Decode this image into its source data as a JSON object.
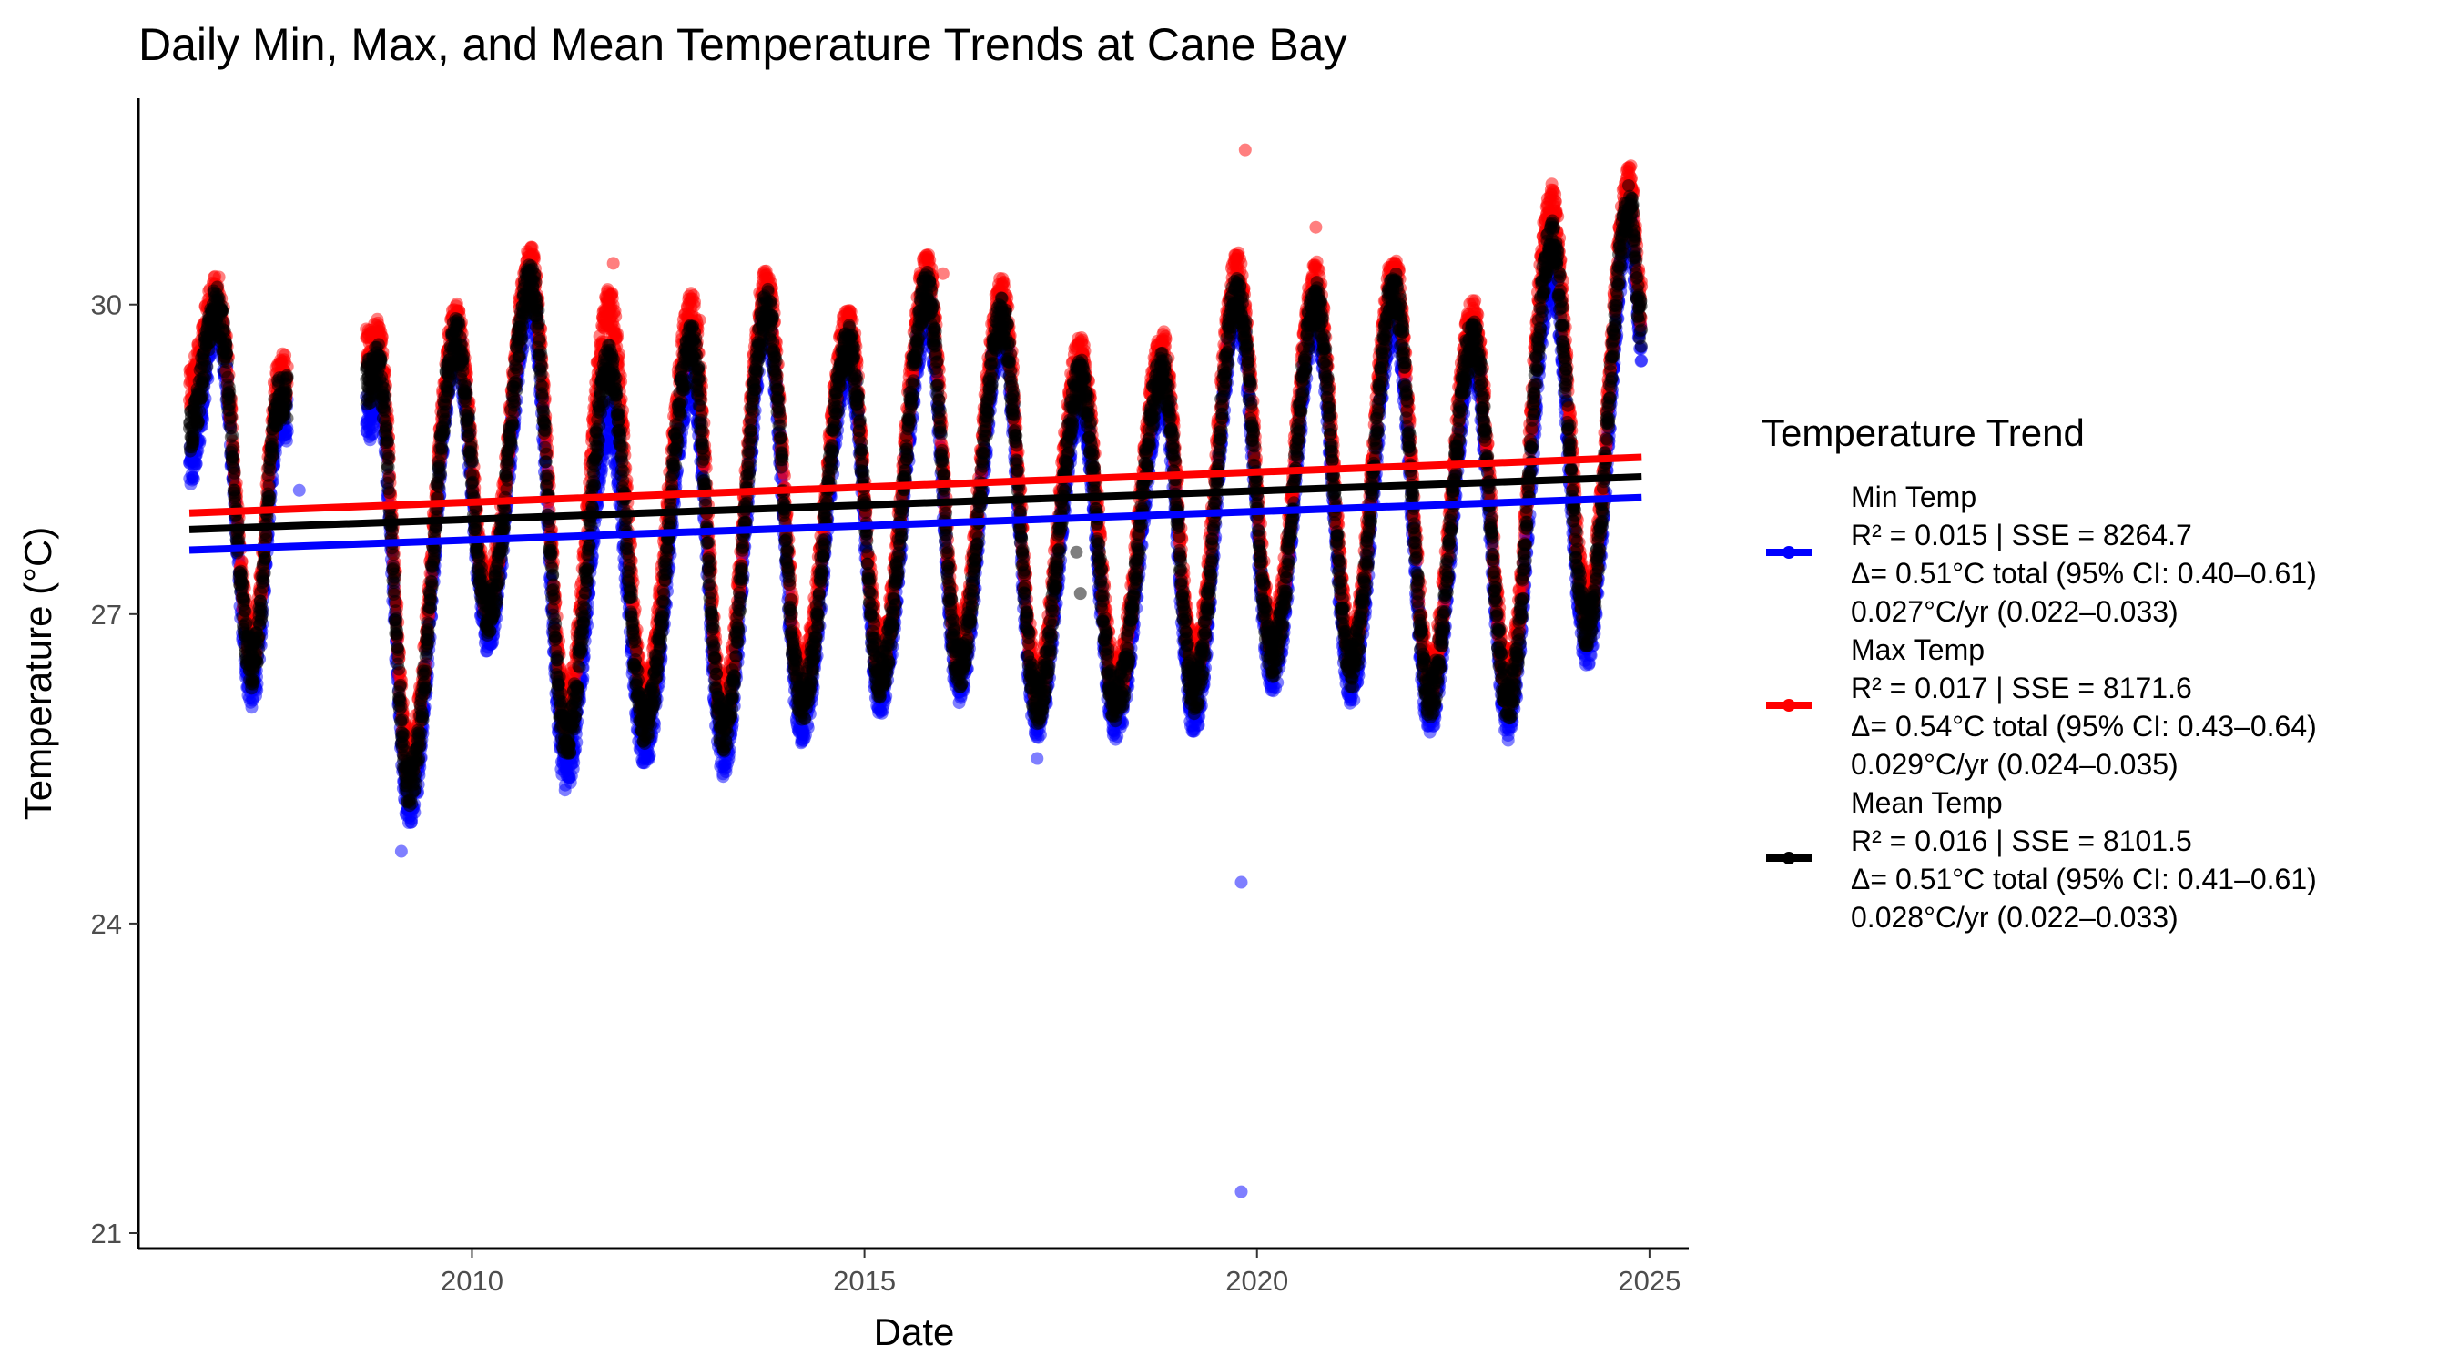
{
  "chart_data": {
    "type": "scatter",
    "title": "Daily Min, Max, and Mean Temperature Trends at Cane Bay",
    "xlabel": "Date",
    "ylabel": "Temperature (°C)",
    "xlim": [
      2005.75,
      2025.5
    ],
    "ylim": [
      20.85,
      32.0
    ],
    "x_ticks": [
      "2010",
      "2015",
      "2020",
      "2025"
    ],
    "x_tick_values": [
      2010,
      2015,
      2020,
      2025
    ],
    "y_ticks": [
      "21",
      "24",
      "27",
      "30"
    ],
    "y_tick_values": [
      21,
      24,
      27,
      30
    ],
    "grid": false,
    "legend_position": "right",
    "legend_title": "Temperature Trend",
    "series": [
      {
        "name": "Min Temp",
        "color": "#0000FF",
        "stats": [
          "R² = 0.015 | SSE = 8264.7",
          "Δ= 0.51°C total (95% CI: 0.40–0.61)",
          "0.027°C/yr (0.022–0.033)"
        ],
        "trend": {
          "x": [
            2006.4,
            2024.9
          ],
          "y": [
            27.62,
            28.13
          ]
        },
        "seasonal_peaks": [
          [
            2006.75,
            29.85
          ],
          [
            2007.55,
            28.9
          ],
          [
            2008.8,
            29.2
          ],
          [
            2009.8,
            29.55
          ],
          [
            2010.75,
            30.05
          ],
          [
            2011.75,
            28.85
          ],
          [
            2012.8,
            29.3
          ],
          [
            2013.75,
            29.8
          ],
          [
            2014.8,
            29.45
          ],
          [
            2015.8,
            29.9
          ],
          [
            2016.75,
            29.7
          ],
          [
            2017.75,
            29.05
          ],
          [
            2018.8,
            29.15
          ],
          [
            2019.75,
            29.95
          ],
          [
            2020.75,
            29.85
          ],
          [
            2021.75,
            29.9
          ],
          [
            2022.75,
            29.5
          ],
          [
            2023.75,
            30.3
          ],
          [
            2024.75,
            30.75
          ]
        ],
        "seasonal_troughs": [
          [
            2006.4,
            28.4
          ],
          [
            2007.2,
            26.3
          ],
          [
            2008.7,
            28.9
          ],
          [
            2009.2,
            25.15
          ],
          [
            2010.2,
            26.85
          ],
          [
            2011.2,
            25.5
          ],
          [
            2012.2,
            25.75
          ],
          [
            2013.2,
            25.65
          ],
          [
            2014.2,
            25.95
          ],
          [
            2015.2,
            26.25
          ],
          [
            2016.2,
            26.35
          ],
          [
            2017.2,
            26.0
          ],
          [
            2018.2,
            26.0
          ],
          [
            2019.2,
            26.05
          ],
          [
            2020.2,
            26.45
          ],
          [
            2021.2,
            26.35
          ],
          [
            2022.2,
            26.05
          ],
          [
            2023.2,
            26.0
          ],
          [
            2024.2,
            26.7
          ],
          [
            2024.9,
            29.6
          ]
        ],
        "outliers": [
          [
            2019.8,
            24.4
          ],
          [
            2019.8,
            21.4
          ],
          [
            2009.1,
            24.7
          ],
          [
            2017.2,
            25.6
          ],
          [
            2024.5,
            28.8
          ],
          [
            2007.8,
            28.2
          ],
          [
            2011.2,
            25.5
          ]
        ]
      },
      {
        "name": "Max Temp",
        "color": "#FF0000",
        "stats": [
          "R² = 0.017 | SSE = 8171.6",
          "Δ= 0.54°C total (95% CI: 0.43–0.64)",
          "0.029°C/yr (0.024–0.035)"
        ],
        "trend": {
          "x": [
            2006.4,
            2024.9
          ],
          "y": [
            27.98,
            28.52
          ]
        },
        "seasonal_peaks": [
          [
            2006.75,
            30.1
          ],
          [
            2007.55,
            29.3
          ],
          [
            2008.8,
            29.65
          ],
          [
            2009.8,
            29.8
          ],
          [
            2010.75,
            30.35
          ],
          [
            2011.75,
            29.95
          ],
          [
            2012.8,
            29.9
          ],
          [
            2013.75,
            30.15
          ],
          [
            2014.8,
            29.8
          ],
          [
            2015.8,
            30.3
          ],
          [
            2016.75,
            30.05
          ],
          [
            2017.75,
            29.5
          ],
          [
            2018.8,
            29.55
          ],
          [
            2019.75,
            30.3
          ],
          [
            2020.75,
            30.2
          ],
          [
            2021.75,
            30.3
          ],
          [
            2022.75,
            29.85
          ],
          [
            2023.75,
            30.95
          ],
          [
            2024.75,
            31.15
          ]
        ],
        "seasonal_troughs": [
          [
            2006.4,
            29.2
          ],
          [
            2007.2,
            26.7
          ],
          [
            2008.7,
            29.6
          ],
          [
            2009.2,
            25.6
          ],
          [
            2010.2,
            27.2
          ],
          [
            2011.2,
            26.1
          ],
          [
            2012.2,
            26.2
          ],
          [
            2013.2,
            26.1
          ],
          [
            2014.2,
            26.4
          ],
          [
            2015.2,
            26.6
          ],
          [
            2016.2,
            26.7
          ],
          [
            2017.2,
            26.35
          ],
          [
            2018.2,
            26.35
          ],
          [
            2019.2,
            26.5
          ],
          [
            2020.2,
            26.8
          ],
          [
            2021.2,
            26.7
          ],
          [
            2022.2,
            26.4
          ],
          [
            2023.2,
            26.35
          ],
          [
            2024.2,
            27.1
          ],
          [
            2024.9,
            30.0
          ]
        ],
        "outliers": [
          [
            2019.85,
            31.5
          ],
          [
            2020.75,
            30.75
          ],
          [
            2011.8,
            30.4
          ],
          [
            2012.9,
            29.85
          ],
          [
            2016.0,
            30.3
          ]
        ]
      },
      {
        "name": "Mean Temp",
        "color": "#000000",
        "stats": [
          "R² = 0.016 | SSE = 8101.5",
          "Δ= 0.51°C total (95% CI: 0.41–0.61)",
          "0.028°C/yr (0.022–0.033)"
        ],
        "trend": {
          "x": [
            2006.4,
            2024.9
          ],
          "y": [
            27.82,
            28.33
          ]
        },
        "seasonal_peaks": [
          [
            2006.75,
            29.95
          ],
          [
            2007.55,
            29.1
          ],
          [
            2008.8,
            29.4
          ],
          [
            2009.8,
            29.65
          ],
          [
            2010.75,
            30.2
          ],
          [
            2011.75,
            29.4
          ],
          [
            2012.8,
            29.6
          ],
          [
            2013.75,
            29.95
          ],
          [
            2014.8,
            29.6
          ],
          [
            2015.8,
            30.1
          ],
          [
            2016.75,
            29.85
          ],
          [
            2017.75,
            29.25
          ],
          [
            2018.8,
            29.35
          ],
          [
            2019.75,
            30.1
          ],
          [
            2020.75,
            30.0
          ],
          [
            2021.75,
            30.1
          ],
          [
            2022.75,
            29.65
          ],
          [
            2023.75,
            30.6
          ],
          [
            2024.75,
            30.95
          ]
        ],
        "seasonal_troughs": [
          [
            2006.4,
            28.8
          ],
          [
            2007.2,
            26.5
          ],
          [
            2008.7,
            29.25
          ],
          [
            2009.2,
            25.35
          ],
          [
            2010.2,
            27.0
          ],
          [
            2011.2,
            25.8
          ],
          [
            2012.2,
            25.95
          ],
          [
            2013.2,
            25.85
          ],
          [
            2014.2,
            26.15
          ],
          [
            2015.2,
            26.4
          ],
          [
            2016.2,
            26.5
          ],
          [
            2017.2,
            26.15
          ],
          [
            2018.2,
            26.15
          ],
          [
            2019.2,
            26.25
          ],
          [
            2020.2,
            26.6
          ],
          [
            2021.2,
            26.5
          ],
          [
            2022.2,
            26.2
          ],
          [
            2023.2,
            26.15
          ],
          [
            2024.2,
            26.9
          ],
          [
            2024.9,
            29.8
          ]
        ],
        "outliers": [
          [
            2017.75,
            27.2
          ],
          [
            2017.7,
            27.6
          ]
        ]
      }
    ]
  }
}
